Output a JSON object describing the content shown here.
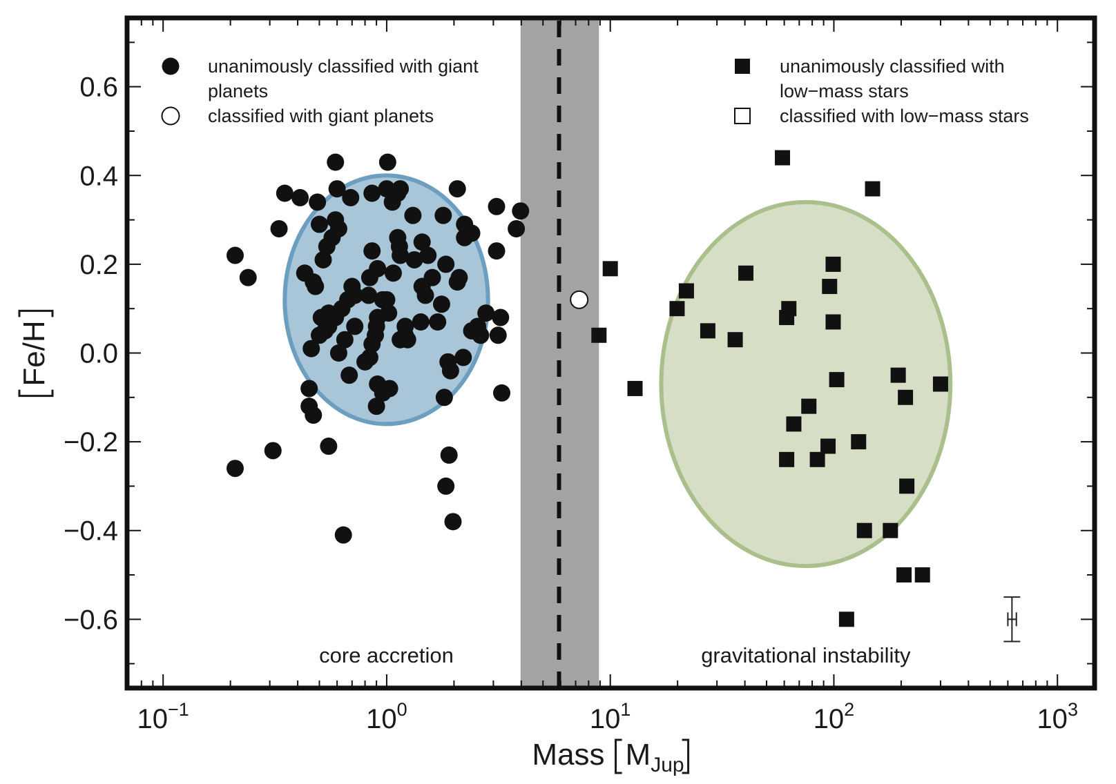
{
  "chart_data": {
    "type": "scatter",
    "x_label": "Mass",
    "x_label_unit": {
      "symbol": "M",
      "subscript": "Jup"
    },
    "y_label": "Fe/H",
    "x_log": true,
    "xlim": [
      0.069,
      1466
    ],
    "ylim": [
      -0.755,
      0.755
    ],
    "xticks": [
      {
        "value": 0.1,
        "label": "10",
        "exponent": "−1"
      },
      {
        "value": 1,
        "label": "10",
        "exponent": "0"
      },
      {
        "value": 10,
        "label": "10",
        "exponent": "1"
      },
      {
        "value": 100,
        "label": "10",
        "exponent": "2"
      },
      {
        "value": 1000,
        "label": "10",
        "exponent": "3"
      }
    ],
    "xminorticks": [
      0.07,
      0.08,
      0.09,
      0.2,
      0.3,
      0.4,
      0.5,
      0.6,
      0.7,
      0.8,
      0.9,
      2,
      3,
      4,
      5,
      6,
      7,
      8,
      9,
      20,
      30,
      40,
      50,
      60,
      70,
      80,
      90,
      200,
      300,
      400,
      500,
      600,
      700,
      800,
      900
    ],
    "yticks": [
      {
        "value": -0.6,
        "label": "−0.6"
      },
      {
        "value": -0.4,
        "label": "−0.4"
      },
      {
        "value": -0.2,
        "label": "−0.2"
      },
      {
        "value": 0,
        "label": "0.0"
      },
      0.2,
      0.4,
      0.6
    ],
    "yminorticks": [
      -0.7,
      -0.5,
      -0.3,
      -0.1,
      0.1,
      0.3,
      0.5,
      0.7
    ],
    "band": {
      "x": [
        3.97,
        8.9
      ],
      "color": "#a3a3a3"
    },
    "divider_x": 5.9,
    "regions": [
      {
        "label": "core accretion",
        "x_span": [
          0.35,
          2.84
        ],
        "y_span": [
          -0.16,
          0.4
        ],
        "fill": "#a9c5d8",
        "stroke": "#6c9ec0"
      },
      {
        "label": "gravitational instability",
        "x_span": [
          16.9,
          332
        ],
        "y_span": [
          -0.48,
          0.34
        ],
        "fill": "#d6dfc6",
        "stroke": "#abbf8c"
      }
    ],
    "error_bar": {
      "x": 626,
      "y": -0.6,
      "x_err": [
        600,
        655
      ],
      "y_err": 0.05
    },
    "series": [
      {
        "name": "unanimously classified with giant planets",
        "marker": "circle",
        "filled": true,
        "color": "#111111",
        "legend_position": "upper left",
        "x": [
          0.21,
          0.24,
          0.21,
          0.31,
          0.33,
          0.35,
          0.41,
          0.49,
          0.59,
          0.6,
          0.69,
          0.86,
          1.0,
          1.01,
          1.12,
          1.15,
          1.06,
          1.31,
          1.79,
          2.07,
          2.23,
          2.4,
          2.23,
          3.1,
          3.97,
          3.8,
          3.1,
          0.59,
          0.5,
          0.61,
          0.57,
          0.54,
          0.52,
          0.43,
          0.48,
          0.47,
          0.86,
          1.12,
          1.14,
          1.15,
          1.44,
          1.53,
          1.33,
          1.07,
          0.91,
          0.84,
          1.44,
          1.49,
          1.6,
          1.84,
          2.11,
          2.07,
          1.76,
          0.7,
          0.72,
          0.83,
          0.96,
          1.0,
          0.67,
          0.63,
          0.55,
          0.51,
          0.59,
          0.55,
          0.53,
          0.5,
          0.46,
          0.65,
          0.72,
          0.61,
          0.86,
          0.89,
          0.9,
          0.91,
          1.02,
          1.21,
          1.21,
          1.15,
          1.24,
          1.42,
          1.69,
          2.78,
          3.23,
          2.55,
          2.4,
          2.63,
          3.15,
          2.2,
          1.88,
          1.93,
          0.84,
          0.8,
          0.68,
          0.91,
          1.03,
          0.96,
          0.9,
          0.45,
          0.45,
          0.47,
          1.81,
          3.27,
          0.55,
          1.9,
          1.84,
          1.98,
          0.64
        ],
        "values": [
          0.22,
          0.17,
          -0.26,
          -0.22,
          0.28,
          0.36,
          0.35,
          0.34,
          0.43,
          0.37,
          0.35,
          0.36,
          0.37,
          0.43,
          0.36,
          0.37,
          0.34,
          0.31,
          0.31,
          0.37,
          0.29,
          0.27,
          0.26,
          0.33,
          0.32,
          0.28,
          0.23,
          0.3,
          0.29,
          0.28,
          0.26,
          0.24,
          0.21,
          0.18,
          0.15,
          0.16,
          0.23,
          0.26,
          0.24,
          0.22,
          0.25,
          0.22,
          0.21,
          0.18,
          0.19,
          0.17,
          0.15,
          0.13,
          0.17,
          0.2,
          0.17,
          0.16,
          0.11,
          0.15,
          0.13,
          0.13,
          0.12,
          0.12,
          0.12,
          0.1,
          0.09,
          0.08,
          0.08,
          0.06,
          0.05,
          0.04,
          0.01,
          0.03,
          0.06,
          0.0,
          0.02,
          0.04,
          0.06,
          0.08,
          0.09,
          0.06,
          0.04,
          0.03,
          0.03,
          0.07,
          0.07,
          0.09,
          0.08,
          0.06,
          0.05,
          0.04,
          0.04,
          -0.01,
          -0.02,
          -0.04,
          -0.01,
          -0.02,
          -0.05,
          -0.07,
          -0.08,
          -0.09,
          -0.12,
          -0.08,
          -0.12,
          -0.14,
          -0.1,
          -0.09,
          -0.21,
          -0.23,
          -0.3,
          -0.38,
          -0.41
        ]
      },
      {
        "name": "classified with giant planets",
        "marker": "circle",
        "filled": false,
        "color": "#111111",
        "legend_position": "upper left",
        "x": [
          7.26
        ],
        "values": [
          0.12
        ]
      },
      {
        "name": "unanimously classified with low−mass stars",
        "marker": "square",
        "filled": true,
        "color": "#111111",
        "legend_position": "upper right",
        "x": [
          58.9,
          149,
          10,
          40.4,
          99.3,
          95.7,
          21.9,
          19.9,
          62.9,
          61.5,
          99.3,
          27.3,
          8.9,
          36.2,
          12.9,
          194,
          300,
          103,
          209,
          77.3,
          66.2,
          129,
          94.2,
          61.5,
          84.4,
          212,
          137,
          179,
          206,
          249,
          114
        ],
        "values": [
          0.44,
          0.37,
          0.19,
          0.18,
          0.2,
          0.15,
          0.14,
          0.1,
          0.1,
          0.08,
          0.07,
          0.05,
          0.04,
          0.03,
          -0.08,
          -0.05,
          -0.07,
          -0.06,
          -0.1,
          -0.12,
          -0.16,
          -0.2,
          -0.21,
          -0.24,
          -0.24,
          -0.3,
          -0.4,
          -0.4,
          -0.5,
          -0.5,
          -0.6
        ]
      },
      {
        "name": "classified with low−mass stars",
        "marker": "square",
        "filled": false,
        "color": "#111111",
        "legend_position": "upper right",
        "x": [],
        "values": []
      }
    ]
  }
}
